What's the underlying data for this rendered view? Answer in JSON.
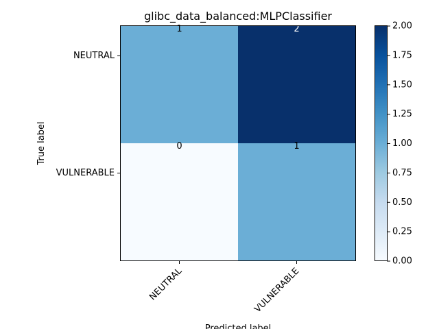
{
  "chart_data": {
    "type": "heatmap",
    "title": "glibc_data_balanced:MLPClassifier",
    "xlabel": "Predicted label",
    "ylabel": "True label",
    "x_categories": [
      "NEUTRAL",
      "VULNERABLE"
    ],
    "y_categories": [
      "NEUTRAL",
      "VULNERABLE"
    ],
    "values": [
      [
        1,
        2
      ],
      [
        0,
        1
      ]
    ],
    "colormap": "Blues",
    "colorbar": {
      "range": [
        0,
        2
      ],
      "ticks": [
        "0.00",
        "0.25",
        "0.50",
        "0.75",
        "1.00",
        "1.25",
        "1.50",
        "1.75",
        "2.00"
      ]
    },
    "grid": false
  }
}
